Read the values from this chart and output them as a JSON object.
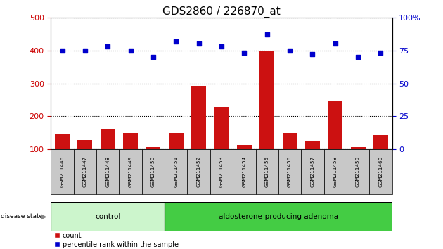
{
  "title": "GDS2860 / 226870_at",
  "samples": [
    "GSM211446",
    "GSM211447",
    "GSM211448",
    "GSM211449",
    "GSM211450",
    "GSM211451",
    "GSM211452",
    "GSM211453",
    "GSM211454",
    "GSM211455",
    "GSM211456",
    "GSM211457",
    "GSM211458",
    "GSM211459",
    "GSM211460"
  ],
  "counts": [
    148,
    128,
    163,
    150,
    107,
    150,
    293,
    228,
    113,
    400,
    150,
    125,
    248,
    108,
    143
  ],
  "percentiles": [
    75,
    75,
    78,
    75,
    70,
    82,
    80,
    78,
    73,
    87,
    75,
    72,
    80,
    70,
    73
  ],
  "control_count": 5,
  "total_count": 15,
  "group_labels": [
    "control",
    "aldosterone-producing adenoma"
  ],
  "group_colors": [
    "#ccf5cc",
    "#44cc44"
  ],
  "bar_color": "#cc1111",
  "dot_color": "#0000cc",
  "ylim_left": [
    100,
    500
  ],
  "ylim_right": [
    0,
    100
  ],
  "yticks_left": [
    100,
    200,
    300,
    400,
    500
  ],
  "yticks_right": [
    0,
    25,
    50,
    75,
    100
  ],
  "title_fontsize": 11,
  "background_color": "#ffffff",
  "tick_color_left": "#cc0000",
  "tick_color_right": "#0000cc",
  "legend_items": [
    "count",
    "percentile rank within the sample"
  ],
  "sample_box_color": "#c8c8c8",
  "disease_state_label": "disease state"
}
